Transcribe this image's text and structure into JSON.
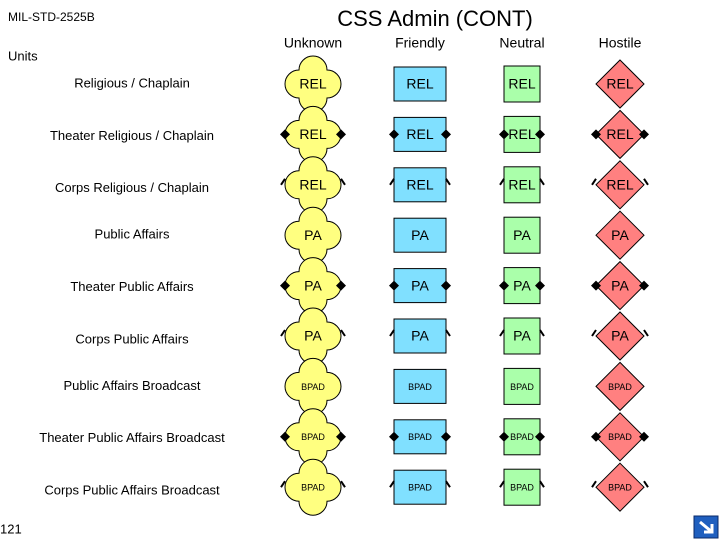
{
  "header": {
    "doc_id": "MIL-STD-2525B",
    "title": "CSS Admin (CONT)",
    "section": "Units"
  },
  "columns": [
    "Unknown",
    "Friendly",
    "Neutral",
    "Hostile"
  ],
  "rows": [
    {
      "label": "Religious / Chaplain",
      "cells": [
        "REL",
        "REL",
        "REL",
        "REL"
      ]
    },
    {
      "label": "Theater Religious / Chaplain",
      "cells": [
        "REL",
        "REL",
        "REL",
        "REL"
      ]
    },
    {
      "label": "Corps Religious / Chaplain",
      "cells": [
        "REL",
        "REL",
        "REL",
        "REL"
      ]
    },
    {
      "label": "Public Affairs",
      "cells": [
        "PA",
        "PA",
        "PA",
        "PA"
      ]
    },
    {
      "label": "Theater Public Affairs",
      "cells": [
        "PA",
        "PA",
        "PA",
        "PA"
      ]
    },
    {
      "label": "Corps Public Affairs",
      "cells": [
        "PA",
        "PA",
        "PA",
        "PA"
      ]
    },
    {
      "label": "Public Affairs Broadcast",
      "cells": [
        "BPAD",
        "BPAD",
        "BPAD",
        "BPAD"
      ]
    },
    {
      "label": "Theater Public Affairs Broadcast",
      "cells": [
        "BPAD",
        "BPAD",
        "BPAD",
        "BPAD"
      ]
    },
    {
      "label": "Corps Public Affairs Broadcast",
      "cells": [
        "BPAD",
        "BPAD",
        "BPAD",
        "BPAD"
      ]
    }
  ],
  "footer": {
    "page_number": "121"
  }
}
